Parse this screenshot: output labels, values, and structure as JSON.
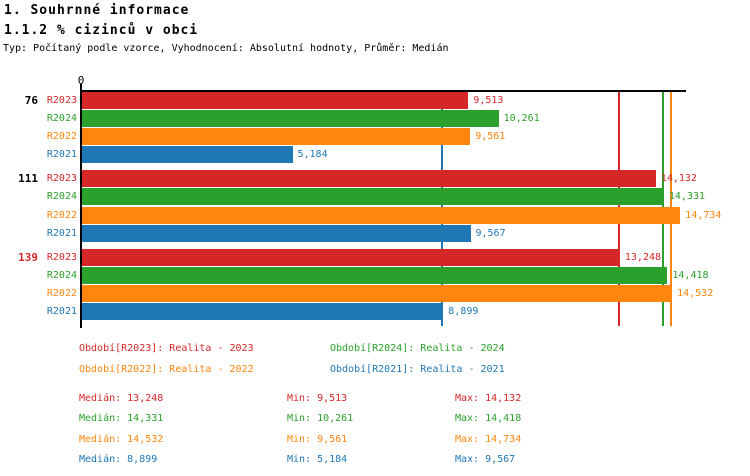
{
  "header": {
    "title": "1. Souhrnné informace",
    "subtitle": "1.1.2 % cizinců v obci",
    "meta": "Typ: Počítaný podle vzorce, Vyhodnocení: Absolutní hodnoty, Průměr: Medián"
  },
  "colors": {
    "R2023": "#d62728",
    "R2024": "#2ca02c",
    "R2022": "#ff850e",
    "R2021": "#1f77b4",
    "axis": "#000000",
    "highlight_group": "#d62728",
    "default_group": "#000000"
  },
  "chart_data": {
    "type": "bar",
    "orientation": "horizontal",
    "title": "1.1.2 % cizinců v obci",
    "axis": {
      "origin_label": "0",
      "max": 14900,
      "grid": false
    },
    "series_order": [
      "R2023",
      "R2024",
      "R2022",
      "R2021"
    ],
    "groups": [
      {
        "label": "76",
        "label_color": "#000000",
        "bars": [
          {
            "series": "R2023",
            "value": 9513,
            "display": "9,513",
            "color": "#d62728"
          },
          {
            "series": "R2024",
            "value": 10261,
            "display": "10,261",
            "color": "#2ca02c"
          },
          {
            "series": "R2022",
            "value": 9561,
            "display": "9,561",
            "color": "#ff850e"
          },
          {
            "series": "R2021",
            "value": 5184,
            "display": "5,184",
            "color": "#1f77b4"
          }
        ]
      },
      {
        "label": "111",
        "label_color": "#000000",
        "bars": [
          {
            "series": "R2023",
            "value": 14132,
            "display": "14,132",
            "color": "#d62728"
          },
          {
            "series": "R2024",
            "value": 14331,
            "display": "14,331",
            "color": "#2ca02c"
          },
          {
            "series": "R2022",
            "value": 14734,
            "display": "14,734",
            "color": "#ff850e"
          },
          {
            "series": "R2021",
            "value": 9567,
            "display": "9,567",
            "color": "#1f77b4"
          }
        ]
      },
      {
        "label": "139",
        "label_color": "#d62728",
        "bars": [
          {
            "series": "R2023",
            "value": 13248,
            "display": "13,248",
            "color": "#d62728"
          },
          {
            "series": "R2024",
            "value": 14418,
            "display": "14,418",
            "color": "#2ca02c"
          },
          {
            "series": "R2022",
            "value": 14532,
            "display": "14,532",
            "color": "#ff850e"
          },
          {
            "series": "R2021",
            "value": 8899,
            "display": "8,899",
            "color": "#1f77b4"
          }
        ]
      }
    ],
    "median_lines": [
      {
        "series": "R2023",
        "value": 13248,
        "color": "#d62728"
      },
      {
        "series": "R2024",
        "value": 14331,
        "color": "#2ca02c"
      },
      {
        "series": "R2022",
        "value": 14532,
        "color": "#ff850e"
      },
      {
        "series": "R2021",
        "value": 8899,
        "color": "#1f77b4"
      }
    ]
  },
  "legend": {
    "items": [
      {
        "series": "R2023",
        "label": "Období[R2023]: Realita - 2023",
        "color": "#d62728"
      },
      {
        "series": "R2024",
        "label": "Období[R2024]: Realita - 2024",
        "color": "#2ca02c"
      },
      {
        "series": "R2022",
        "label": "Období[R2022]: Realita - 2022",
        "color": "#ff850e"
      },
      {
        "series": "R2021",
        "label": "Období[R2021]: Realita - 2021",
        "color": "#1f77b4"
      }
    ]
  },
  "stats": {
    "labels": {
      "median": "Medián",
      "min": "Min",
      "max": "Max"
    },
    "rows": [
      {
        "series": "R2023",
        "color": "#d62728",
        "median": "13,248",
        "min": "9,513",
        "max": "14,132"
      },
      {
        "series": "R2024",
        "color": "#2ca02c",
        "median": "14,331",
        "min": "10,261",
        "max": "14,418"
      },
      {
        "series": "R2022",
        "color": "#ff850e",
        "median": "14,532",
        "min": "9,561",
        "max": "14,734"
      },
      {
        "series": "R2021",
        "color": "#1f77b4",
        "median": "8,899",
        "min": "5,184",
        "max": "9,567"
      }
    ]
  }
}
